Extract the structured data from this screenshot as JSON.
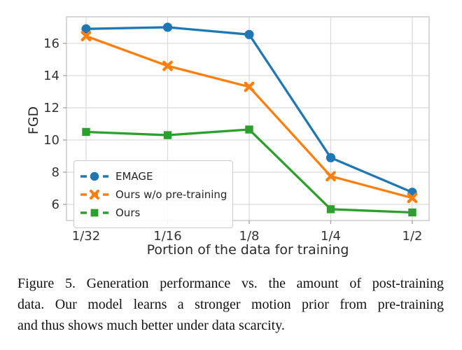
{
  "caption": {
    "lines": [
      "Figure 5. Generation performance vs. the amount of post-training",
      "data. Our model learns a stronger motion prior from pre-training",
      "and thus shows much better under data scarcity."
    ]
  },
  "chart_data": {
    "type": "line",
    "title": "",
    "xlabel": "Portion of the data for training",
    "ylabel": "FGD",
    "categories": [
      "1/32",
      "1/16",
      "1/8",
      "1/4",
      "1/2"
    ],
    "yticks": [
      6,
      8,
      10,
      12,
      14,
      16
    ],
    "ylim": [
      5.0,
      17.65
    ],
    "grid": true,
    "legend_position": "lower-left-inside",
    "colors": {
      "grid": "#d9d9d9",
      "spine": "#cccccc",
      "tick": "#9a9a9a",
      "text": "#343434"
    },
    "series": [
      {
        "name": "EMAGE",
        "color": "#1f77b4",
        "marker": "circle",
        "values": [
          16.9,
          17.0,
          16.55,
          8.9,
          6.75
        ]
      },
      {
        "name": "Ours w/o pre-training",
        "color": "#ff7f0e",
        "marker": "x",
        "values": [
          16.45,
          14.6,
          13.3,
          7.75,
          6.4
        ]
      },
      {
        "name": "Ours",
        "color": "#2ca02c",
        "marker": "square",
        "values": [
          10.5,
          10.3,
          10.65,
          5.7,
          5.5
        ]
      }
    ]
  }
}
